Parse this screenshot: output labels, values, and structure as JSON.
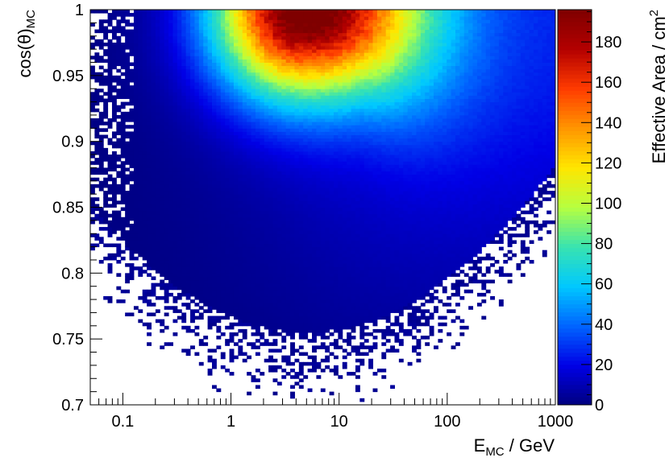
{
  "chart_data": {
    "type": "heatmap",
    "title": "",
    "xlabel": "E",
    "xlabel_sub": "MC",
    "xlabel_suffix": " / GeV",
    "ylabel": "cos(θ)",
    "ylabel_sub": "MC",
    "colorbar_label": "Effective Area / cm",
    "colorbar_label_sup": "2",
    "x_scale": "log",
    "xlim": [
      0.05,
      1000
    ],
    "ylim": [
      0.7,
      1.0
    ],
    "zlim": [
      0,
      196
    ],
    "x_ticks": [
      0.1,
      1,
      10,
      100,
      1000
    ],
    "x_tick_labels": [
      "0.1",
      "1",
      "10",
      "100",
      "1000"
    ],
    "y_ticks": [
      0.7,
      0.75,
      0.8,
      0.85,
      0.9,
      0.95,
      1.0
    ],
    "y_tick_labels": [
      "0.7",
      "0.75",
      "0.8",
      "0.85",
      "0.9",
      "0.95",
      "1"
    ],
    "z_ticks": [
      0,
      20,
      40,
      60,
      80,
      100,
      120,
      140,
      160,
      180
    ],
    "z_tick_labels": [
      "0",
      "20",
      "40",
      "60",
      "80",
      "100",
      "120",
      "140",
      "160",
      "180"
    ],
    "colormap": "rainbow (dark blue → cyan → green → yellow → orange → red → dark red)",
    "colormap_stops": [
      "#00007f",
      "#0000e6",
      "#0064ff",
      "#00c8ff",
      "#38e3b0",
      "#b6ff40",
      "#ffe600",
      "#ff9600",
      "#ff3c00",
      "#b40000",
      "#7f0000"
    ],
    "bins": {
      "x_count": 107,
      "y_count": 120
    },
    "grid": false,
    "peak": {
      "x": 4.5,
      "y": 0.99,
      "value": 190
    },
    "description_values": [
      {
        "x": 1,
        "y": 0.99,
        "value": 150
      },
      {
        "x": 4.5,
        "y": 0.99,
        "value": 190
      },
      {
        "x": 10,
        "y": 0.99,
        "value": 180
      },
      {
        "x": 30,
        "y": 0.99,
        "value": 110
      },
      {
        "x": 100,
        "y": 0.99,
        "value": 45
      },
      {
        "x": 1000,
        "y": 0.99,
        "value": 25
      },
      {
        "x": 4.5,
        "y": 0.9,
        "value": 110
      },
      {
        "x": 4.5,
        "y": 0.8,
        "value": 5
      },
      {
        "x": 0.3,
        "y": 0.99,
        "value": 40
      }
    ]
  }
}
